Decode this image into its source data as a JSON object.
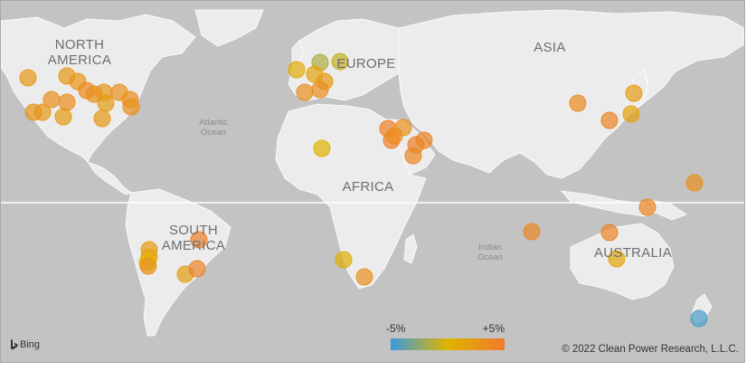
{
  "labels": {
    "north_america": [
      "NORTH",
      "AMERICA"
    ],
    "south_america": [
      "SOUTH",
      "AMERICA"
    ],
    "europe": "EUROPE",
    "asia": "ASIA",
    "africa": "AFRICA",
    "australia": "AUSTRALIA",
    "atlantic": [
      "Atlantic",
      "Ocean"
    ],
    "indian": [
      "Indian",
      "Ocean"
    ]
  },
  "legend": {
    "min_label": "-5%",
    "max_label": "+5%",
    "colors": [
      "#3a9be0",
      "#e0b400",
      "#ef7a2e"
    ]
  },
  "copyright": "© 2022 Clean Power Research, L.L.C.",
  "provider": "Bing",
  "sites": [
    {
      "region": "north-america",
      "value": 2.5
    },
    {
      "region": "north-america",
      "value": 2.5
    },
    {
      "region": "north-america",
      "value": 2.8
    },
    {
      "region": "north-america",
      "value": 3.0
    },
    {
      "region": "north-america",
      "value": 2.4
    },
    {
      "region": "north-america",
      "value": 2.6
    },
    {
      "region": "north-america",
      "value": 3.5
    },
    {
      "region": "north-america",
      "value": 2.7
    },
    {
      "region": "north-america",
      "value": 2.0
    },
    {
      "region": "north-america",
      "value": 3.2
    },
    {
      "region": "north-america",
      "value": 2.3
    },
    {
      "region": "north-america",
      "value": 2.1
    },
    {
      "region": "north-america",
      "value": 3.3
    },
    {
      "region": "north-america",
      "value": 2.9
    },
    {
      "region": "north-america",
      "value": 3.0
    },
    {
      "region": "north-america",
      "value": 3.1
    },
    {
      "region": "europe",
      "value": -1.5
    },
    {
      "region": "europe",
      "value": -0.8
    },
    {
      "region": "europe",
      "value": 1.5
    },
    {
      "region": "europe",
      "value": 0.8
    },
    {
      "region": "europe",
      "value": 2.2
    },
    {
      "region": "europe",
      "value": 3.3
    },
    {
      "region": "europe",
      "value": 3.2
    },
    {
      "region": "africa",
      "value": 0.0
    },
    {
      "region": "middle-east",
      "value": 4.5
    },
    {
      "region": "middle-east",
      "value": 3.0
    },
    {
      "region": "middle-east",
      "value": 4.6
    },
    {
      "region": "middle-east",
      "value": 4.0
    },
    {
      "region": "middle-east",
      "value": 4.4
    },
    {
      "region": "middle-east",
      "value": 3.9
    },
    {
      "region": "middle-east",
      "value": 3.4
    },
    {
      "region": "asia",
      "value": 3.5
    },
    {
      "region": "asia",
      "value": 2.0
    },
    {
      "region": "asia",
      "value": 4.0
    },
    {
      "region": "asia",
      "value": 1.5
    },
    {
      "region": "oceania",
      "value": 3.0
    },
    {
      "region": "oceania",
      "value": 3.8
    },
    {
      "region": "indian-ocean",
      "value": 3.8
    },
    {
      "region": "australia",
      "value": 4.0
    },
    {
      "region": "australia",
      "value": 1.0
    },
    {
      "region": "new-zealand",
      "value": -4.5
    },
    {
      "region": "south-america",
      "value": 4.5
    },
    {
      "region": "south-america",
      "value": 2.0
    },
    {
      "region": "south-america",
      "value": 1.5
    },
    {
      "region": "south-america",
      "value": 0.0
    },
    {
      "region": "south-america",
      "value": 3.0
    },
    {
      "region": "south-america",
      "value": 2.0
    },
    {
      "region": "south-america",
      "value": 4.2
    },
    {
      "region": "africa",
      "value": 0.5
    },
    {
      "region": "africa",
      "value": 3.0
    }
  ]
}
